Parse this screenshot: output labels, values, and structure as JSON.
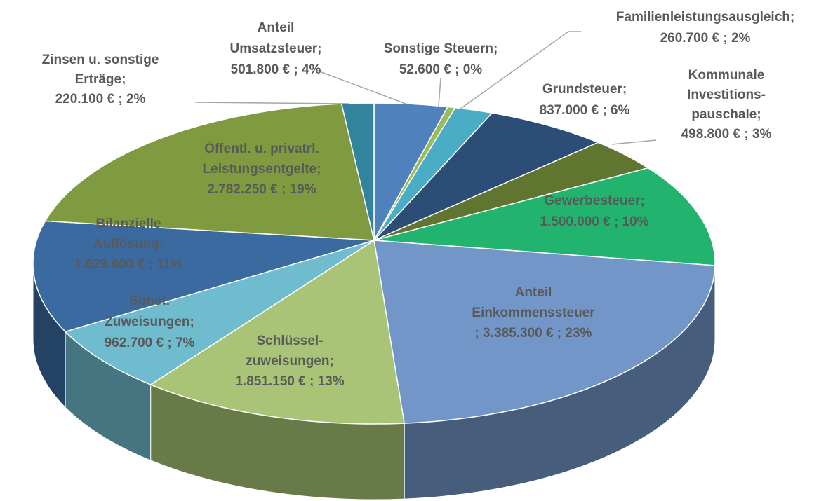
{
  "chart_data": {
    "type": "pie3d",
    "categories": [
      "Anteil Umsatzsteuer;",
      "Sonstige Steuern;",
      "Familienleistungsausgleich;",
      "Grundsteuer;",
      "Kommunale Investitions-pauschale;",
      "Gewerbesteuer;",
      "Anteil Einkommenssteuer",
      "Schlüssel-zuweisungen;",
      "Sonst. Zuweisungen;",
      "Bilanzielle Auflösung;",
      "Öffentl. u. privatrl. Leistungsentgelte;",
      "Zinsen u. sonstige Erträge;"
    ],
    "values": [
      501800,
      52600,
      260700,
      837000,
      498800,
      1500000,
      3385300,
      1851150,
      962700,
      1629600,
      2782250,
      220100
    ],
    "value_labels": [
      "501.800 € ; 4%",
      "52.600 € ; 0%",
      "260.700 € ; 2%",
      "837.000 € ; 6%",
      "498.800 € ; 3%",
      "1.500.000 € ; 10%",
      "; 3.385.300 € ; 23%",
      "1.851.150 € ; 13%",
      "962.700 € ; 7%",
      "1.629.600 € ; 11%",
      "2.782.250 € ; 19%",
      "220.100 € ; 2%"
    ],
    "colors": [
      "#4f81bd",
      "#9bbb59",
      "#4bacc6",
      "#2c4d75",
      "#5f7530",
      "#22b36f",
      "#7396c8",
      "#a9c476",
      "#6fbccf",
      "#3a6aa0",
      "#7f9a3f",
      "#31849b"
    ]
  }
}
